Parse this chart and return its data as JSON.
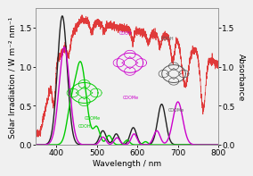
{
  "title": "",
  "xlabel": "Wavelength / nm",
  "ylabel_left": "Solar Irradiation / W m⁻² nm⁻¹",
  "ylabel_right": "Absorbance",
  "xlim": [
    350,
    800
  ],
  "ylim_left": [
    0.0,
    1.75
  ],
  "ylim_right": [
    0.0,
    1.75
  ],
  "bg_color": "#f0f0f0",
  "line_colors": {
    "solar": "#e03030",
    "black_curve": "#202020",
    "green_curve": "#00cc00",
    "magenta_curve": "#cc00cc"
  },
  "tick_label_fontsize": 6.5,
  "axis_label_fontsize": 6.5,
  "yticks": [
    0.0,
    0.5,
    1.0,
    1.5
  ],
  "xticks": [
    400,
    500,
    600,
    700,
    800
  ]
}
